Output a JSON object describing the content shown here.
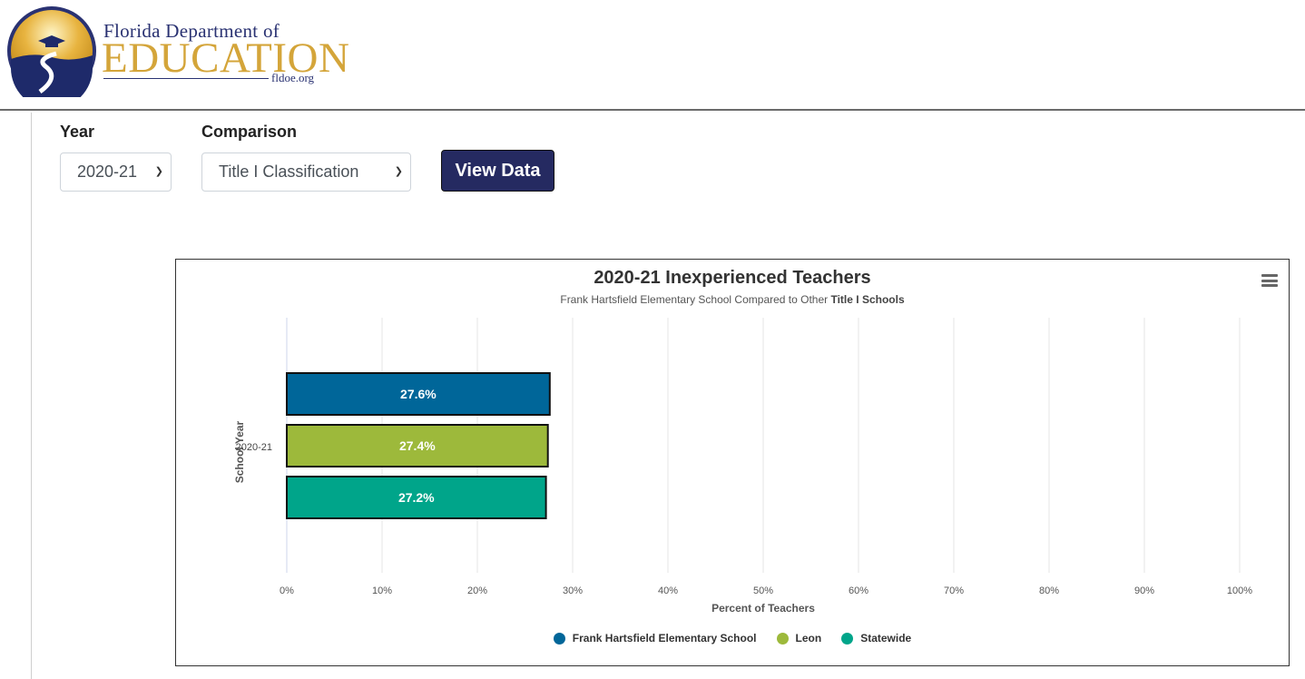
{
  "header": {
    "org_line1_prefix": "Florida Department of",
    "org_line2": "EDUCATION",
    "url": "fldoe.org"
  },
  "filters": {
    "year_label": "Year",
    "year_value": "2020-21",
    "comparison_label": "Comparison",
    "comparison_value": "Title I Classification",
    "view_button": "View Data"
  },
  "chart": {
    "title": "2020-21 Inexperienced Teachers",
    "subtitle_prefix": "Frank Hartsfield Elementary School Compared to Other ",
    "subtitle_bold": "Title I Schools",
    "xlabel": "Percent of Teachers",
    "ylabel": "School Year"
  },
  "chart_data": {
    "type": "bar",
    "orientation": "horizontal",
    "title": "2020-21 Inexperienced Teachers",
    "subtitle": "Frank Hartsfield Elementary School Compared to Other Title I Schools",
    "xlabel": "Percent of Teachers",
    "ylabel": "School Year",
    "categories": [
      "2020-21"
    ],
    "xlim": [
      0,
      100
    ],
    "x_ticks": [
      "0%",
      "10%",
      "20%",
      "30%",
      "40%",
      "50%",
      "60%",
      "70%",
      "80%",
      "90%",
      "100%"
    ],
    "grid": true,
    "legend": "bottom-center",
    "series": [
      {
        "name": "Frank Hartsfield Elementary School",
        "values": [
          27.6
        ],
        "label": "27.6%",
        "color": "#006699"
      },
      {
        "name": "Leon",
        "values": [
          27.4
        ],
        "label": "27.4%",
        "color": "#9db93b"
      },
      {
        "name": "Statewide",
        "values": [
          27.2
        ],
        "label": "27.2%",
        "color": "#00a58a"
      }
    ]
  },
  "colors": {
    "brand_navy": "#2a3272",
    "brand_gold": "#d4a53a",
    "button_bg": "#252a61"
  }
}
